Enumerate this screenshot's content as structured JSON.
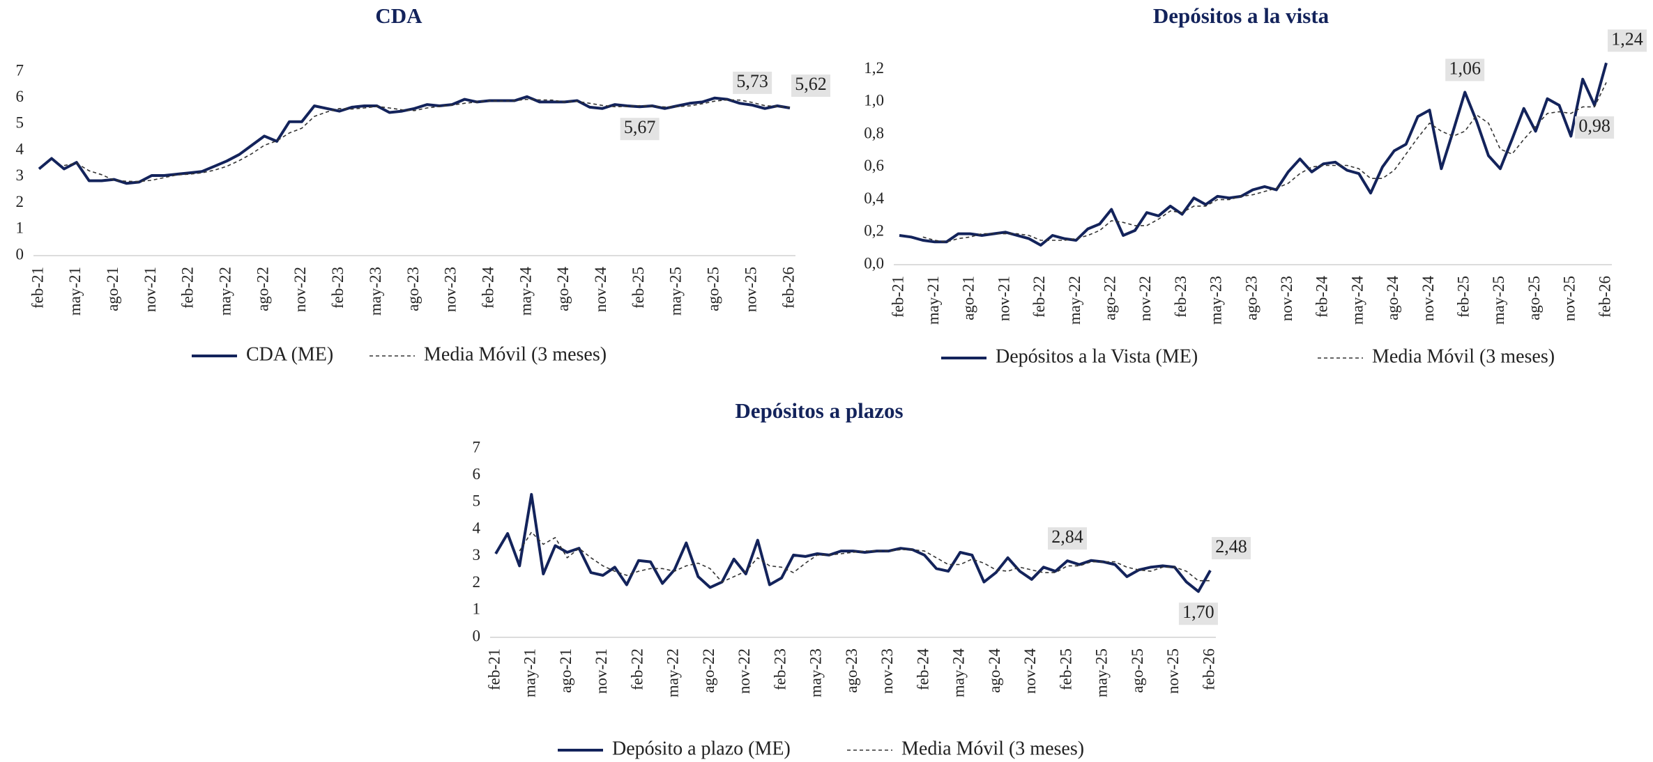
{
  "chart_data": [
    {
      "type": "line",
      "title": "CDA",
      "categories": [
        "feb-21",
        null,
        null,
        "may-21",
        null,
        null,
        "ago-21",
        null,
        null,
        "nov-21",
        null,
        null,
        "feb-22",
        null,
        null,
        "may-22",
        null,
        null,
        "ago-22",
        null,
        null,
        "nov-22",
        null,
        null,
        "feb-23",
        null,
        null,
        "may-23",
        null,
        null,
        "ago-23",
        null,
        null,
        "nov-23",
        null,
        null,
        "feb-24",
        null,
        null,
        "may-24",
        null,
        null,
        "ago-24",
        null,
        null,
        "nov-24",
        null,
        null,
        "feb-25",
        null,
        null,
        "may-25",
        null,
        null,
        "ago-25",
        null,
        null,
        "nov-25",
        null,
        null,
        "feb-26"
      ],
      "ylim": [
        0,
        7
      ],
      "yticks": [
        0,
        1,
        2,
        3,
        4,
        5,
        6,
        7
      ],
      "series": [
        {
          "name": "CDA (ME)",
          "color": "#13235b",
          "dashed": false,
          "values": [
            3.3,
            3.7,
            3.3,
            3.55,
            2.85,
            2.85,
            2.9,
            2.75,
            2.8,
            3.05,
            3.05,
            3.1,
            3.15,
            3.2,
            3.4,
            3.6,
            3.85,
            4.2,
            4.55,
            4.35,
            5.1,
            5.1,
            5.7,
            5.6,
            5.5,
            5.65,
            5.7,
            5.7,
            5.45,
            5.5,
            5.6,
            5.75,
            5.7,
            5.75,
            5.95,
            5.85,
            5.9,
            5.9,
            5.9,
            6.05,
            5.85,
            5.85,
            5.85,
            5.9,
            5.65,
            5.6,
            5.75,
            5.7,
            5.67,
            5.7,
            5.6,
            5.7,
            5.8,
            5.85,
            6.0,
            5.95,
            5.8,
            5.73,
            5.6,
            5.7,
            5.62
          ],
          "value_labels": [
            null,
            null,
            null,
            null,
            null,
            null,
            null,
            null,
            null,
            null,
            null,
            null,
            null,
            null,
            null,
            null,
            null,
            null,
            null,
            null,
            null,
            null,
            null,
            null,
            null,
            null,
            null,
            null,
            null,
            null,
            null,
            null,
            null,
            null,
            null,
            null,
            null,
            null,
            null,
            null,
            null,
            null,
            null,
            null,
            null,
            null,
            null,
            null,
            "5,67",
            null,
            null,
            null,
            null,
            null,
            null,
            null,
            null,
            "5,73",
            null,
            null,
            "5,62"
          ]
        },
        {
          "name": "Media Móvil (3 meses)",
          "color": "#333333",
          "dashed": true,
          "values": [
            null,
            null,
            3.43,
            3.52,
            3.23,
            3.08,
            2.87,
            2.83,
            2.82,
            2.87,
            2.97,
            3.07,
            3.1,
            3.15,
            3.25,
            3.4,
            3.62,
            3.88,
            4.2,
            4.37,
            4.67,
            4.85,
            5.3,
            5.47,
            5.6,
            5.58,
            5.62,
            5.68,
            5.62,
            5.55,
            5.52,
            5.62,
            5.68,
            5.73,
            5.8,
            5.85,
            5.9,
            5.88,
            5.9,
            5.95,
            5.93,
            5.92,
            5.85,
            5.87,
            5.8,
            5.72,
            5.67,
            5.68,
            5.71,
            5.69,
            5.66,
            5.67,
            5.7,
            5.78,
            5.88,
            5.93,
            5.92,
            5.83,
            5.71,
            5.68,
            5.64
          ]
        }
      ]
    },
    {
      "type": "line",
      "title": "Depósitos a la vista",
      "categories": [
        "feb-21",
        null,
        null,
        "may-21",
        null,
        null,
        "ago-21",
        null,
        null,
        "nov-21",
        null,
        null,
        "feb-22",
        null,
        null,
        "may-22",
        null,
        null,
        "ago-22",
        null,
        null,
        "nov-22",
        null,
        null,
        "feb-23",
        null,
        null,
        "may-23",
        null,
        null,
        "ago-23",
        null,
        null,
        "nov-23",
        null,
        null,
        "feb-24",
        null,
        null,
        "may-24",
        null,
        null,
        "ago-24",
        null,
        null,
        "nov-24",
        null,
        null,
        "feb-25",
        null,
        null,
        "may-25",
        null,
        null,
        "ago-25",
        null,
        null,
        "nov-25",
        null,
        null,
        "feb-26"
      ],
      "ylim": [
        0,
        1.25
      ],
      "yticks": [
        {
          "value": 0,
          "label": "0,0"
        },
        {
          "value": 0.2,
          "label": "0,2"
        },
        {
          "value": 0.4,
          "label": "0,4"
        },
        {
          "value": 0.6,
          "label": "0,6"
        },
        {
          "value": 0.8,
          "label": "0,8"
        },
        {
          "value": 1.0,
          "label": "1,0"
        },
        {
          "value": 1.2,
          "label": "1,2"
        }
      ],
      "series": [
        {
          "name": "Depósitos a la Vista (ME)",
          "color": "#13235b",
          "dashed": false,
          "values": [
            0.18,
            0.17,
            0.15,
            0.14,
            0.14,
            0.19,
            0.19,
            0.18,
            0.19,
            0.2,
            0.18,
            0.16,
            0.12,
            0.18,
            0.16,
            0.15,
            0.22,
            0.25,
            0.34,
            0.18,
            0.21,
            0.32,
            0.3,
            0.36,
            0.31,
            0.41,
            0.37,
            0.42,
            0.41,
            0.42,
            0.46,
            0.48,
            0.46,
            0.57,
            0.65,
            0.57,
            0.62,
            0.63,
            0.58,
            0.56,
            0.44,
            0.6,
            0.7,
            0.74,
            0.91,
            0.95,
            0.59,
            0.82,
            1.06,
            0.88,
            0.67,
            0.59,
            0.77,
            0.96,
            0.82,
            1.02,
            0.98,
            0.79,
            1.14,
            0.98,
            1.24
          ],
          "value_labels": [
            null,
            null,
            null,
            null,
            null,
            null,
            null,
            null,
            null,
            null,
            null,
            null,
            null,
            null,
            null,
            null,
            null,
            null,
            null,
            null,
            null,
            null,
            null,
            null,
            null,
            null,
            null,
            null,
            null,
            null,
            null,
            null,
            null,
            null,
            null,
            null,
            null,
            null,
            null,
            null,
            null,
            null,
            null,
            null,
            null,
            null,
            null,
            null,
            "1,06",
            null,
            null,
            null,
            null,
            null,
            null,
            null,
            null,
            null,
            null,
            "0,98",
            "1,24"
          ]
        },
        {
          "name": "Media Móvil (3 meses)",
          "color": "#333333",
          "dashed": true,
          "values": [
            null,
            null,
            0.17,
            0.15,
            0.14,
            0.16,
            0.17,
            0.19,
            0.19,
            0.19,
            0.19,
            0.18,
            0.15,
            0.15,
            0.15,
            0.16,
            0.18,
            0.21,
            0.27,
            0.26,
            0.24,
            0.24,
            0.28,
            0.33,
            0.32,
            0.36,
            0.36,
            0.4,
            0.4,
            0.42,
            0.43,
            0.45,
            0.47,
            0.5,
            0.56,
            0.6,
            0.61,
            0.61,
            0.61,
            0.59,
            0.53,
            0.53,
            0.58,
            0.68,
            0.78,
            0.87,
            0.82,
            0.79,
            0.82,
            0.92,
            0.87,
            0.71,
            0.68,
            0.77,
            0.85,
            0.93,
            0.94,
            0.93,
            0.97,
            0.97,
            1.12
          ]
        }
      ]
    },
    {
      "type": "line",
      "title": "Depósitos a plazos",
      "categories": [
        "feb-21",
        null,
        null,
        "may-21",
        null,
        null,
        "ago-21",
        null,
        null,
        "nov-21",
        null,
        null,
        "feb-22",
        null,
        null,
        "may-22",
        null,
        null,
        "ago-22",
        null,
        null,
        "nov-22",
        null,
        null,
        "feb-23",
        null,
        null,
        "may-23",
        null,
        null,
        "ago-23",
        null,
        null,
        "nov-23",
        null,
        null,
        "feb-24",
        null,
        null,
        "may-24",
        null,
        null,
        "ago-24",
        null,
        null,
        "nov-24",
        null,
        null,
        "feb-25",
        null,
        null,
        "may-25",
        null,
        null,
        "ago-25",
        null,
        null,
        "nov-25",
        null,
        null,
        "feb-26"
      ],
      "ylim": [
        0,
        7
      ],
      "yticks": [
        0,
        1,
        2,
        3,
        4,
        5,
        6,
        7
      ],
      "series": [
        {
          "name": "Depósito a plazo (ME)",
          "color": "#13235b",
          "dashed": false,
          "values": [
            3.1,
            3.85,
            2.65,
            5.3,
            2.35,
            3.4,
            3.15,
            3.3,
            2.4,
            2.3,
            2.6,
            1.95,
            2.85,
            2.8,
            2.0,
            2.5,
            3.5,
            2.25,
            1.85,
            2.05,
            2.9,
            2.35,
            3.6,
            1.95,
            2.2,
            3.05,
            3.0,
            3.1,
            3.05,
            3.2,
            3.2,
            3.15,
            3.2,
            3.2,
            3.3,
            3.25,
            3.05,
            2.55,
            2.45,
            3.15,
            3.05,
            2.05,
            2.4,
            2.95,
            2.45,
            2.15,
            2.6,
            2.45,
            2.84,
            2.7,
            2.85,
            2.8,
            2.7,
            2.25,
            2.5,
            2.6,
            2.65,
            2.6,
            2.05,
            1.7,
            2.48
          ],
          "value_labels": [
            null,
            null,
            null,
            null,
            null,
            null,
            null,
            null,
            null,
            null,
            null,
            null,
            null,
            null,
            null,
            null,
            null,
            null,
            null,
            null,
            null,
            null,
            null,
            null,
            null,
            null,
            null,
            null,
            null,
            null,
            null,
            null,
            null,
            null,
            null,
            null,
            null,
            null,
            null,
            null,
            null,
            null,
            null,
            null,
            null,
            null,
            null,
            null,
            "2,84",
            null,
            null,
            null,
            null,
            null,
            null,
            null,
            null,
            null,
            null,
            "1,70",
            "2,48"
          ]
        },
        {
          "name": "Media Móvil (3 meses)",
          "color": "#333333",
          "dashed": true,
          "values": [
            null,
            null,
            3.2,
            3.9,
            3.45,
            3.7,
            2.95,
            3.3,
            2.95,
            2.65,
            2.45,
            2.3,
            2.45,
            2.55,
            2.55,
            2.45,
            2.65,
            2.75,
            2.55,
            2.05,
            2.25,
            2.45,
            2.95,
            2.65,
            2.6,
            2.4,
            2.75,
            3.05,
            3.05,
            3.1,
            3.15,
            3.2,
            3.2,
            3.2,
            3.25,
            3.25,
            3.2,
            2.95,
            2.7,
            2.7,
            2.9,
            2.75,
            2.5,
            2.45,
            2.6,
            2.5,
            2.4,
            2.4,
            2.65,
            2.65,
            2.8,
            2.8,
            2.8,
            2.6,
            2.5,
            2.45,
            2.6,
            2.6,
            2.45,
            2.1,
            2.1
          ]
        }
      ]
    }
  ]
}
